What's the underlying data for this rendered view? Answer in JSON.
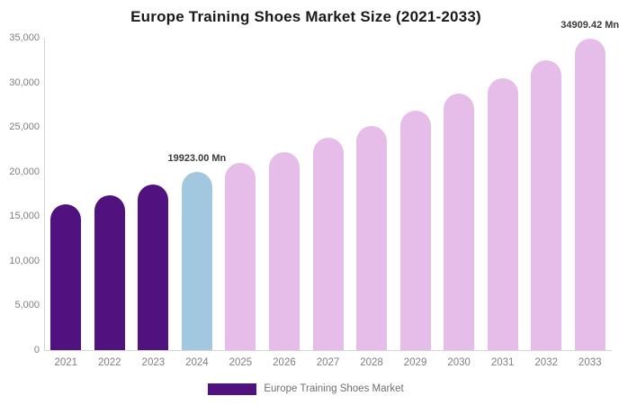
{
  "title": "Europe Training Shoes Market Size (2021-2033)",
  "chart_data": {
    "type": "bar",
    "title": "Europe Training Shoes Market Size (2021-2033)",
    "unit": "Mn",
    "categories": [
      "2021",
      "2022",
      "2023",
      "2024",
      "2025",
      "2026",
      "2027",
      "2028",
      "2029",
      "2030",
      "2031",
      "2032",
      "2033"
    ],
    "series": [
      {
        "name": "Europe Training Shoes Market",
        "values": [
          16370,
          17380,
          18560,
          19923.0,
          20980,
          22190,
          23800,
          25120,
          26830,
          28700,
          30480,
          32480,
          34909.42
        ]
      }
    ],
    "ylim": [
      0,
      35000
    ],
    "ytick_interval": 5000,
    "ytick_labels": [
      "0",
      "5,000",
      "10,000",
      "15,000",
      "20,000",
      "25,000",
      "30,000",
      "35,000"
    ],
    "grid": false,
    "legend_position": "bottom",
    "legend": {
      "label": "Europe Training Shoes Market",
      "color": "#4F127E"
    },
    "bar_colors": [
      "#4F127E",
      "#4F127E",
      "#4F127E",
      "#A2C8E0",
      "#E6BCE8",
      "#E6BCE8",
      "#E6BCE8",
      "#E6BCE8",
      "#E6BCE8",
      "#E6BCE8",
      "#E6BCE8",
      "#E6BCE8",
      "#E6BCE8"
    ],
    "annotations": [
      {
        "text": "19923.00 Mn",
        "category": "2024"
      },
      {
        "text": "34909.42 Mn",
        "category": "2033"
      }
    ],
    "axis_color": "#d4d4d4",
    "label_color": "#7f7f7f"
  }
}
